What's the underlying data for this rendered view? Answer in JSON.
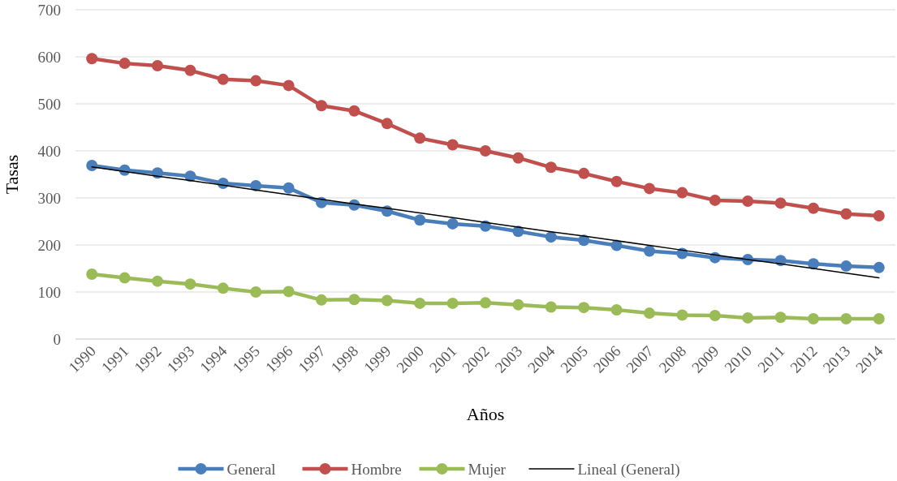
{
  "chart_data": {
    "type": "line",
    "xlabel": "Años",
    "ylabel": "Tasas",
    "categories": [
      "1990",
      "1991",
      "1992",
      "1993",
      "1994",
      "1995",
      "1996",
      "1997",
      "1998",
      "1999",
      "2000",
      "2001",
      "2002",
      "2003",
      "2004",
      "2005",
      "2006",
      "2007",
      "2008",
      "2009",
      "2010",
      "2011",
      "2012",
      "2013",
      "2014"
    ],
    "series": [
      {
        "name": "General",
        "color": "#4a7ebb",
        "values": [
          369,
          359,
          353,
          346,
          331,
          326,
          321,
          290,
          285,
          272,
          253,
          245,
          240,
          229,
          217,
          210,
          199,
          187,
          182,
          173,
          169,
          167,
          160,
          155,
          152
        ]
      },
      {
        "name": "Hombre",
        "color": "#c0504d",
        "values": [
          596,
          586,
          581,
          571,
          552,
          549,
          539,
          496,
          485,
          458,
          427,
          413,
          400,
          385,
          365,
          352,
          335,
          320,
          311,
          295,
          293,
          289,
          278,
          266,
          262
        ]
      },
      {
        "name": "Mujer",
        "color": "#9bbb59",
        "values": [
          138,
          130,
          123,
          117,
          108,
          100,
          101,
          83,
          84,
          82,
          76,
          76,
          77,
          73,
          68,
          67,
          62,
          55,
          51,
          50,
          45,
          46,
          43,
          43,
          43
        ]
      },
      {
        "name": "Lineal (General)",
        "color": "#000000",
        "type": "line",
        "marker": "none",
        "values": [
          366,
          356,
          346,
          337,
          327,
          317,
          307,
          297,
          287,
          278,
          268,
          258,
          248,
          238,
          228,
          219,
          209,
          199,
          189,
          179,
          169,
          160,
          150,
          140,
          130
        ]
      }
    ],
    "ylim": [
      0,
      700
    ],
    "yticks": [
      0,
      100,
      200,
      300,
      400,
      500,
      600,
      700
    ],
    "grid": "y",
    "legend": "bottom",
    "marker": "circle"
  }
}
